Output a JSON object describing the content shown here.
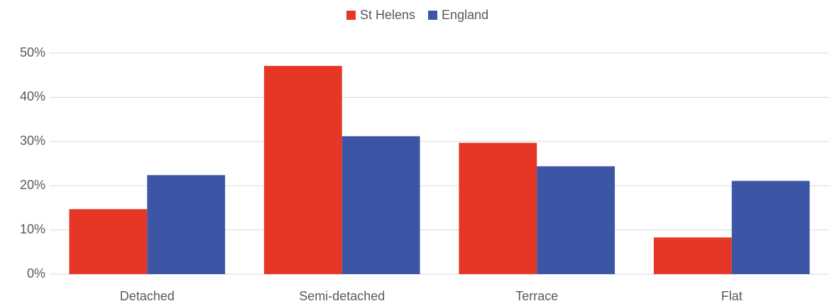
{
  "chart_data": {
    "type": "bar",
    "categories": [
      "Detached",
      "Semi-detached",
      "Terrace",
      "Flat"
    ],
    "series": [
      {
        "name": "St Helens",
        "color": "#e63626",
        "values": [
          14.7,
          47.1,
          29.7,
          8.3
        ]
      },
      {
        "name": "England",
        "color": "#3c56a5",
        "values": [
          22.4,
          31.2,
          24.4,
          21.1
        ]
      }
    ],
    "ylim": [
      0,
      50
    ],
    "yticks": [
      {
        "value": 0,
        "label": "0%"
      },
      {
        "value": 10,
        "label": "10%"
      },
      {
        "value": 20,
        "label": "20%"
      },
      {
        "value": 30,
        "label": "30%"
      },
      {
        "value": 40,
        "label": "40%"
      },
      {
        "value": 50,
        "label": "50%"
      }
    ],
    "grid": true,
    "legend": "top"
  }
}
